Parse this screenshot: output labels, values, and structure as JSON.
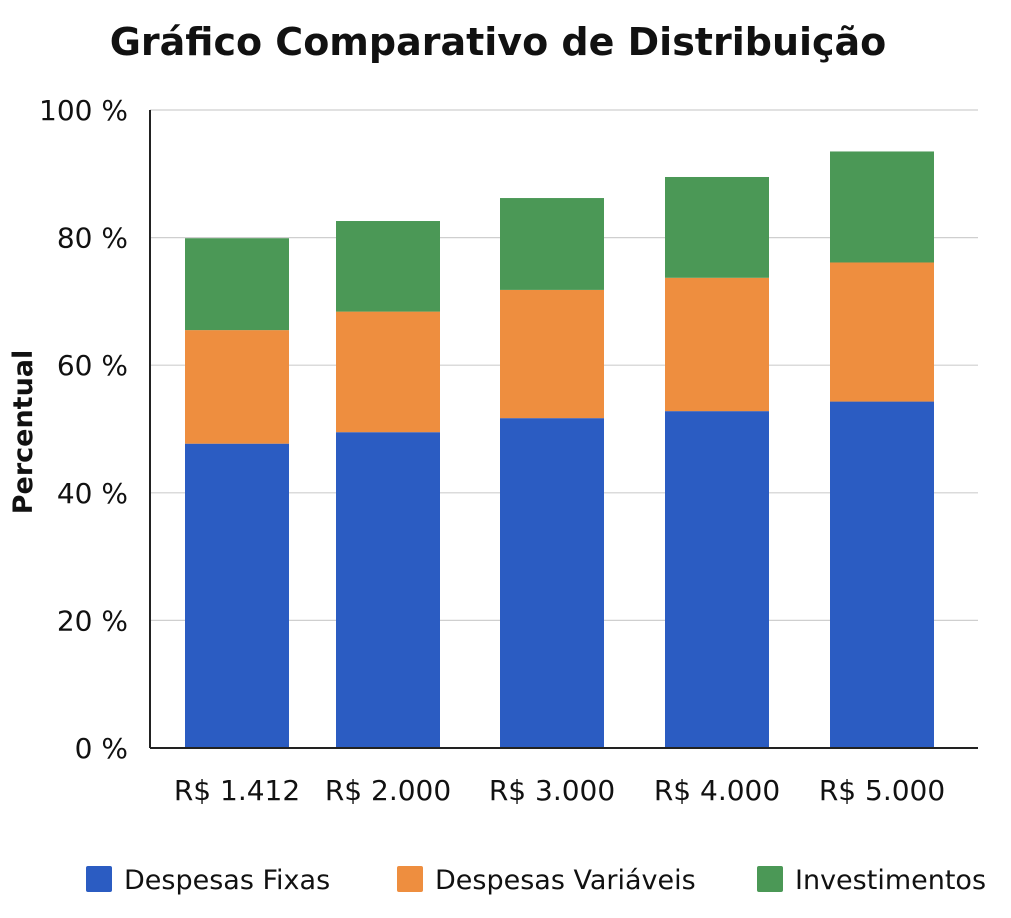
{
  "chart_data": {
    "type": "bar",
    "stacked": true,
    "title": "Gráfico Comparativo de Distribuição",
    "xlabel": "",
    "ylabel": "Percentual",
    "ylim": [
      0,
      100
    ],
    "yticks": [
      0,
      20,
      40,
      60,
      80,
      100
    ],
    "ytick_labels": [
      "0 %",
      "20 %",
      "40 %",
      "60 %",
      "80 %",
      "100 %"
    ],
    "grid": true,
    "legend_position": "bottom",
    "categories": [
      "R$ 1.412",
      "R$ 2.000",
      "R$ 3.000",
      "R$ 4.000",
      "R$ 5.000"
    ],
    "series": [
      {
        "name": "Despesas Fixas",
        "color": "#2b5cc2",
        "values": [
          47.7,
          49.5,
          51.7,
          52.8,
          54.3
        ]
      },
      {
        "name": "Despesas Variáveis",
        "color": "#ee8e3f",
        "values": [
          17.8,
          18.9,
          20.1,
          20.9,
          21.8
        ]
      },
      {
        "name": "Investimentos",
        "color": "#4b9856",
        "values": [
          14.4,
          14.2,
          14.4,
          15.8,
          17.4
        ]
      }
    ]
  }
}
